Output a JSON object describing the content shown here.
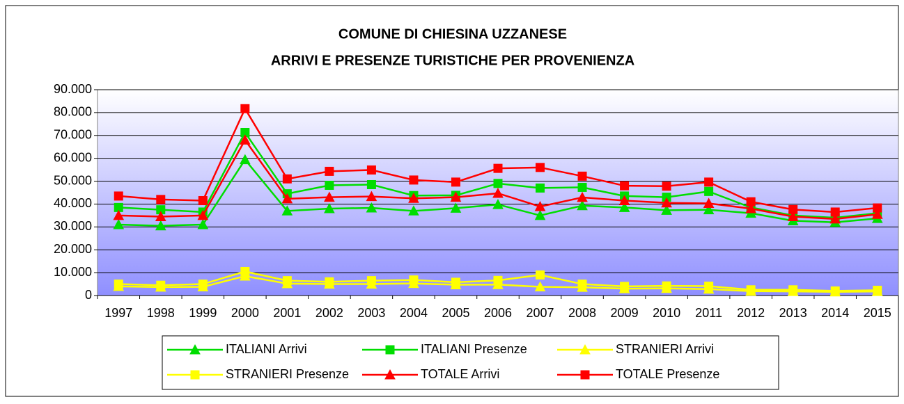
{
  "chart_data": {
    "type": "line",
    "title": [
      "COMUNE DI CHIESINA UZZANESE",
      "ARRIVI E PRESENZE TURISTICHE PER PROVENIENZA"
    ],
    "categories": [
      "1997",
      "1998",
      "1999",
      "2000",
      "2001",
      "2002",
      "2003",
      "2004",
      "2005",
      "2006",
      "2007",
      "2008",
      "2009",
      "2010",
      "2011",
      "2012",
      "2013",
      "2014",
      "2015"
    ],
    "series": [
      {
        "name": "ITALIANI Arrivi",
        "color": "#00dd00",
        "marker": "triangle",
        "values": [
          31000,
          30500,
          31000,
          59400,
          37000,
          38000,
          38300,
          37000,
          38200,
          39800,
          35000,
          39300,
          38500,
          37300,
          37500,
          36000,
          32700,
          32000,
          33700
        ]
      },
      {
        "name": "ITALIANI Presenze",
        "color": "#00dd00",
        "marker": "square",
        "values": [
          38500,
          37500,
          36500,
          71300,
          44500,
          48200,
          48500,
          43700,
          43800,
          49000,
          47000,
          47300,
          43500,
          43000,
          45500,
          38500,
          35000,
          34000,
          36000
        ]
      },
      {
        "name": "STRANIERI Arrivi",
        "color": "#ffff00",
        "marker": "triangle",
        "values": [
          4000,
          3700,
          3800,
          8500,
          5200,
          5000,
          5000,
          5300,
          4700,
          4800,
          3800,
          3600,
          3000,
          3100,
          2800,
          1900,
          1800,
          1600,
          1800
        ]
      },
      {
        "name": "STRANIERI Presenze",
        "color": "#ffff00",
        "marker": "square",
        "values": [
          5000,
          4500,
          5000,
          10500,
          6500,
          6000,
          6500,
          6800,
          5800,
          6600,
          9000,
          5000,
          4000,
          4200,
          4100,
          2500,
          2500,
          2000,
          2300
        ]
      },
      {
        "name": "TOTALE Arrivi",
        "color": "#ff0000",
        "marker": "triangle",
        "values": [
          35000,
          34500,
          35000,
          68000,
          42300,
          43000,
          43300,
          42500,
          43000,
          44700,
          38900,
          42900,
          41500,
          40500,
          40300,
          38000,
          34500,
          33500,
          35500
        ]
      },
      {
        "name": "TOTALE Presenze",
        "color": "#ff0000",
        "marker": "square",
        "values": [
          43500,
          42000,
          41500,
          81700,
          51000,
          54300,
          54900,
          50500,
          49600,
          55600,
          56000,
          52200,
          48000,
          47800,
          49600,
          41000,
          37600,
          36500,
          38300
        ]
      }
    ],
    "ylim": [
      0,
      90000
    ],
    "yticks": [
      0,
      {
        "value": 10000,
        "label": "10.000"
      },
      {
        "value": 20000,
        "label": "20.000"
      },
      {
        "value": 30000,
        "label": "30.000"
      },
      {
        "value": 40000,
        "label": "40.000"
      },
      {
        "value": 50000,
        "label": "50.000"
      },
      {
        "value": 60000,
        "label": "60.000"
      },
      {
        "value": 70000,
        "label": "70.000"
      },
      {
        "value": 80000,
        "label": "80.000"
      },
      {
        "value": 90000,
        "label": "90.000"
      }
    ],
    "grid": true,
    "legend": "bottom"
  }
}
